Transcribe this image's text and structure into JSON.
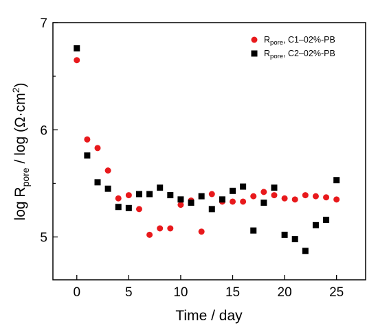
{
  "chart_data": {
    "type": "scatter",
    "xlabel": "Time / day",
    "ylabel": {
      "parts": [
        "log R",
        "pore",
        " / log (Ω·cm",
        "2",
        ")"
      ]
    },
    "xlim": [
      -2.3,
      27.8
    ],
    "ylim": [
      4.6,
      7.0
    ],
    "x_ticks": [
      0,
      5,
      10,
      15,
      20,
      25
    ],
    "x_tick_labels": [
      "0",
      "5",
      "10",
      "15",
      "20",
      "25"
    ],
    "y_ticks": [
      5,
      6,
      7
    ],
    "y_tick_labels": [
      "5",
      "6",
      "7"
    ],
    "legend_position": "top-right",
    "series": [
      {
        "name": "C1–02%-PB",
        "legend_label": {
          "main": "R",
          "sub": "pore",
          "rest": ", C1–02%-PB"
        },
        "marker": "circle",
        "color": "#e8191c",
        "x": [
          0,
          1,
          2,
          3,
          4,
          5,
          6,
          7,
          8,
          9,
          10,
          11,
          12,
          13,
          14,
          15,
          16,
          17,
          18,
          19,
          20,
          21,
          22,
          23,
          24,
          25
        ],
        "y": [
          6.65,
          5.91,
          5.83,
          5.62,
          5.36,
          5.39,
          5.26,
          5.02,
          5.08,
          5.08,
          5.3,
          5.34,
          5.05,
          5.4,
          5.33,
          5.33,
          5.33,
          5.38,
          5.42,
          5.39,
          5.36,
          5.35,
          5.39,
          5.38,
          5.37,
          5.35
        ]
      },
      {
        "name": "C2–02%-PB",
        "legend_label": {
          "main": "R",
          "sub": "pore",
          "rest": ", C2–02%-PB"
        },
        "marker": "square",
        "color": "#000000",
        "x": [
          0,
          1,
          2,
          3,
          4,
          5,
          6,
          7,
          8,
          9,
          10,
          11,
          12,
          13,
          14,
          15,
          16,
          17,
          18,
          19,
          20,
          21,
          22,
          23,
          24,
          25
        ],
        "y": [
          6.76,
          5.76,
          5.51,
          5.45,
          5.28,
          5.27,
          5.4,
          5.4,
          5.46,
          5.39,
          5.35,
          5.32,
          5.38,
          5.26,
          5.35,
          5.43,
          5.47,
          5.06,
          5.32,
          5.46,
          5.02,
          4.98,
          4.87,
          5.11,
          5.16,
          5.53
        ]
      }
    ]
  }
}
